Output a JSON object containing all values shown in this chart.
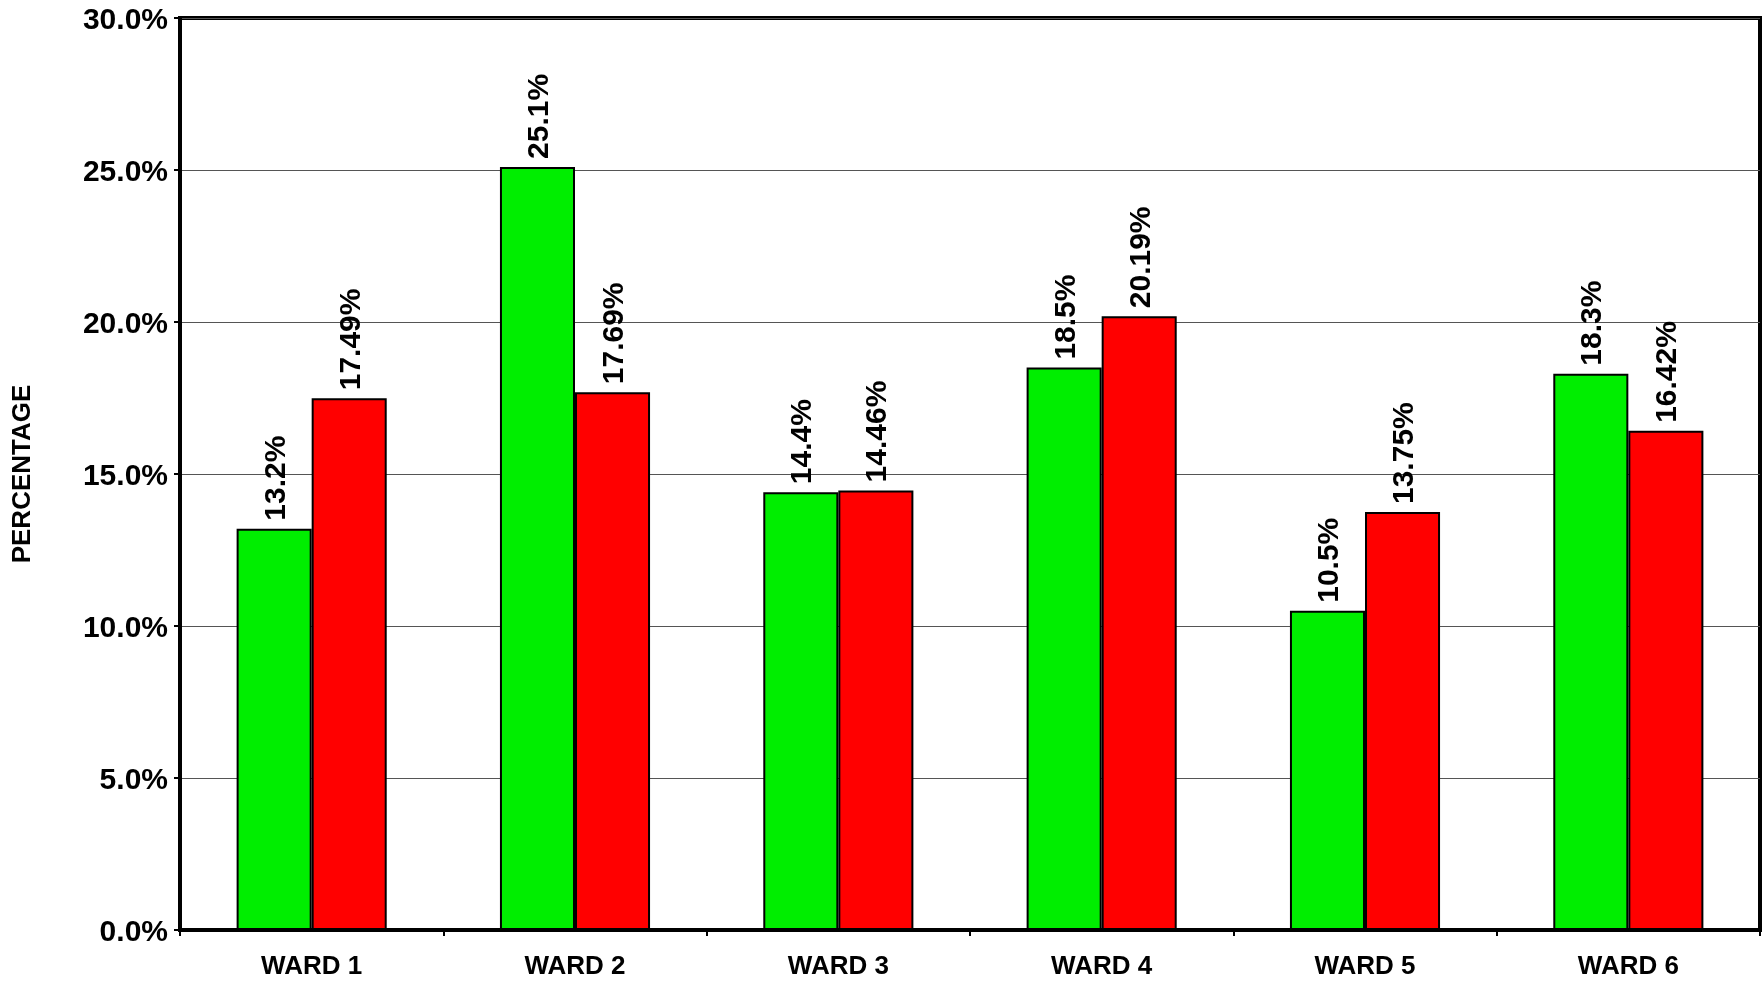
{
  "chart_data": {
    "type": "bar",
    "ylabel": "PERCENTAGE",
    "categories": [
      "WARD 1",
      "WARD 2",
      "WARD 3",
      "WARD 4",
      "WARD 5",
      "WARD 6"
    ],
    "series": [
      {
        "color": "#00ee00",
        "values": [
          13.2,
          25.1,
          14.4,
          18.5,
          10.5,
          18.3
        ],
        "value_labels": [
          "13.2%",
          "25.1%",
          "14.4%",
          "18.5%",
          "10.5%",
          "18.3%"
        ]
      },
      {
        "color": "#ff0000",
        "values": [
          17.49,
          17.69,
          14.46,
          20.19,
          13.75,
          16.42
        ],
        "value_labels": [
          "17.49%",
          "17.69%",
          "14.46%",
          "20.19%",
          "13.75%",
          "16.42%"
        ]
      }
    ],
    "ylim": [
      0,
      30
    ],
    "yticks": [
      {
        "value": 0,
        "label": "0.0%"
      },
      {
        "value": 5,
        "label": "5.0%"
      },
      {
        "value": 10,
        "label": "10.0%"
      },
      {
        "value": 15,
        "label": "15.0%"
      },
      {
        "value": 20,
        "label": "20.0%"
      },
      {
        "value": 25,
        "label": "25.0%"
      },
      {
        "value": 30,
        "label": "30.0%"
      }
    ],
    "grid": "y"
  }
}
